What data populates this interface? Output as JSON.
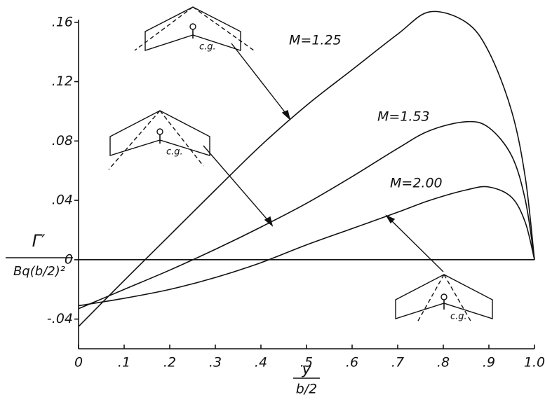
{
  "chart_data": {
    "type": "line",
    "x_label": {
      "numerator": "y",
      "denominator": "b/2"
    },
    "y_label": {
      "numerator": "Γ′",
      "denominator": "Bq(b/2)²"
    },
    "annotations": [
      "c.g.",
      "c.g.",
      "c.g."
    ],
    "x": [
      0,
      0.1,
      0.2,
      0.3,
      0.4,
      0.5,
      0.6,
      0.7,
      0.77,
      0.85,
      0.9,
      0.95,
      0.98,
      1.0
    ],
    "series": [
      {
        "name": "M=1.25",
        "color": "#111111",
        "values": [
          -0.045,
          -0.014,
          0.0165,
          0.047,
          0.077,
          0.104,
          0.128,
          0.152,
          0.167,
          0.16,
          0.14,
          0.1,
          0.055,
          0.0
        ]
      },
      {
        "name": "M=1.53",
        "color": "#111111",
        "values": [
          -0.033,
          -0.02,
          -0.007,
          0.007,
          0.022,
          0.038,
          0.056,
          0.075,
          0.087,
          0.093,
          0.089,
          0.07,
          0.04,
          0.0
        ]
      },
      {
        "name": "M=2.00",
        "color": "#111111",
        "values": [
          -0.031,
          -0.026,
          -0.02,
          -0.012,
          -0.002,
          0.01,
          0.021,
          0.032,
          0.04,
          0.047,
          0.049,
          0.042,
          0.025,
          0.0
        ]
      }
    ],
    "xlim": [
      0,
      1.0
    ],
    "xticks": [
      0,
      {
        "value": 0.1,
        "label": ".1"
      },
      {
        "value": 0.2,
        "label": ".2"
      },
      {
        "value": 0.3,
        "label": ".3"
      },
      {
        "value": 0.4,
        "label": ".4"
      },
      {
        "value": 0.5,
        "label": ".5"
      },
      {
        "value": 0.6,
        "label": ".6"
      },
      {
        "value": 0.7,
        "label": ".7"
      },
      {
        "value": 0.8,
        "label": ".8"
      },
      {
        "value": 0.9,
        "label": ".9"
      },
      {
        "value": 1.0,
        "label": "1.0"
      }
    ],
    "ylim": [
      -0.06,
      0.175
    ],
    "yticks": [
      {
        "value": -0.04,
        "label": "-.04"
      },
      0,
      {
        "value": 0.04,
        "label": ".04"
      },
      {
        "value": 0.08,
        "label": ".08"
      },
      {
        "value": 0.12,
        "label": ".12"
      },
      {
        "value": 0.16,
        "label": ".16"
      }
    ],
    "grid": false
  }
}
